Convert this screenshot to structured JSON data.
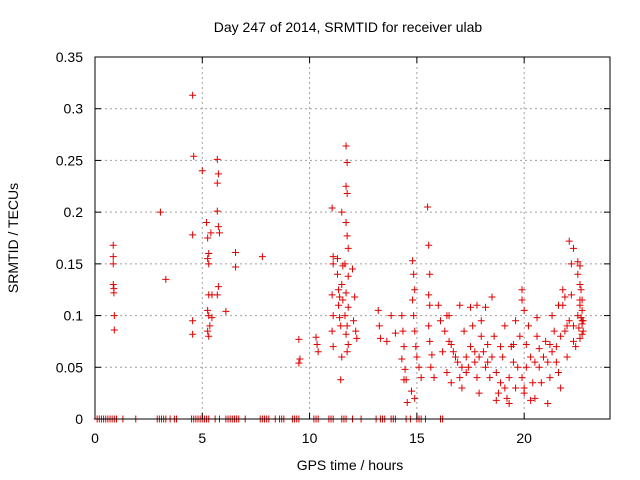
{
  "chart_data": {
    "type": "scatter",
    "title": "Day 247 of 2014, SRMTID for receiver ulab",
    "xlabel": "GPS time / hours",
    "ylabel": "SRMTID / TECUs",
    "xlim": [
      0,
      24
    ],
    "ylim": [
      0,
      0.35
    ],
    "xticks": [
      0,
      5,
      10,
      15,
      20
    ],
    "yticks": [
      0,
      0.05,
      0.1,
      0.15,
      0.2,
      0.25,
      0.3,
      0.35
    ],
    "xtick_labels": [
      "0",
      "5",
      "10",
      "15",
      "20"
    ],
    "ytick_labels": [
      "0",
      "0.05",
      "0.1",
      "0.15",
      "0.2",
      "0.25",
      "0.3",
      "0.35"
    ],
    "grid": true,
    "marker": "+",
    "color": "#e00000",
    "series": [
      {
        "name": "SRMTID",
        "points": [
          [
            0.85,
            0.168
          ],
          [
            0.85,
            0.157
          ],
          [
            0.85,
            0.15
          ],
          [
            0.85,
            0.13
          ],
          [
            0.88,
            0.126
          ],
          [
            0.88,
            0.122
          ],
          [
            0.9,
            0.1
          ],
          [
            0.9,
            0.086
          ],
          [
            3.05,
            0.2
          ],
          [
            3.3,
            0.135
          ],
          [
            4.55,
            0.313
          ],
          [
            4.6,
            0.254
          ],
          [
            4.55,
            0.178
          ],
          [
            4.55,
            0.095
          ],
          [
            4.55,
            0.082
          ],
          [
            5.0,
            0.24
          ],
          [
            5.2,
            0.19
          ],
          [
            5.25,
            0.175
          ],
          [
            5.3,
            0.16
          ],
          [
            5.25,
            0.155
          ],
          [
            5.3,
            0.15
          ],
          [
            5.3,
            0.12
          ],
          [
            5.25,
            0.105
          ],
          [
            5.3,
            0.1
          ],
          [
            5.35,
            0.09
          ],
          [
            5.25,
            0.085
          ],
          [
            5.3,
            0.08
          ],
          [
            5.4,
            0.18
          ],
          [
            5.45,
            0.12
          ],
          [
            5.45,
            0.098
          ],
          [
            5.7,
            0.251
          ],
          [
            5.75,
            0.237
          ],
          [
            5.7,
            0.228
          ],
          [
            5.7,
            0.201
          ],
          [
            5.75,
            0.186
          ],
          [
            5.8,
            0.18
          ],
          [
            5.75,
            0.128
          ],
          [
            5.7,
            0.12
          ],
          [
            6.1,
            0.104
          ],
          [
            6.55,
            0.161
          ],
          [
            6.55,
            0.147
          ],
          [
            7.8,
            0.157
          ],
          [
            9.5,
            0.077
          ],
          [
            9.55,
            0.058
          ],
          [
            9.5,
            0.054
          ],
          [
            10.3,
            0.079
          ],
          [
            10.35,
            0.072
          ],
          [
            10.4,
            0.065
          ],
          [
            11.05,
            0.204
          ],
          [
            11.1,
            0.157
          ],
          [
            11.1,
            0.15
          ],
          [
            11.05,
            0.12
          ],
          [
            11.1,
            0.1
          ],
          [
            11.05,
            0.085
          ],
          [
            11.1,
            0.07
          ],
          [
            11.3,
            0.155
          ],
          [
            11.3,
            0.14
          ],
          [
            11.35,
            0.125
          ],
          [
            11.4,
            0.118
          ],
          [
            11.35,
            0.11
          ],
          [
            11.4,
            0.098
          ],
          [
            11.45,
            0.09
          ],
          [
            11.5,
            0.2
          ],
          [
            11.55,
            0.148
          ],
          [
            11.5,
            0.13
          ],
          [
            11.55,
            0.115
          ],
          [
            11.5,
            0.06
          ],
          [
            11.45,
            0.038
          ],
          [
            11.7,
            0.264
          ],
          [
            11.75,
            0.248
          ],
          [
            11.7,
            0.225
          ],
          [
            11.75,
            0.218
          ],
          [
            11.7,
            0.19
          ],
          [
            11.75,
            0.177
          ],
          [
            11.8,
            0.165
          ],
          [
            11.65,
            0.15
          ],
          [
            11.8,
            0.138
          ],
          [
            11.7,
            0.122
          ],
          [
            11.8,
            0.108
          ],
          [
            11.65,
            0.1
          ],
          [
            11.75,
            0.09
          ],
          [
            11.7,
            0.082
          ],
          [
            11.8,
            0.072
          ],
          [
            11.75,
            0.065
          ],
          [
            12.0,
            0.145
          ],
          [
            12.1,
            0.118
          ],
          [
            12.05,
            0.095
          ],
          [
            12.15,
            0.085
          ],
          [
            12.2,
            0.078
          ],
          [
            13.2,
            0.105
          ],
          [
            13.25,
            0.09
          ],
          [
            13.3,
            0.078
          ],
          [
            13.6,
            0.075
          ],
          [
            13.8,
            0.1
          ],
          [
            14.0,
            0.083
          ],
          [
            14.3,
            0.1
          ],
          [
            14.35,
            0.085
          ],
          [
            14.4,
            0.07
          ],
          [
            14.3,
            0.058
          ],
          [
            14.45,
            0.048
          ],
          [
            14.4,
            0.038
          ],
          [
            14.5,
            0.038
          ],
          [
            14.55,
            0.016
          ],
          [
            14.9,
            0.02
          ],
          [
            14.75,
            0.027
          ],
          [
            14.8,
            0.153
          ],
          [
            14.85,
            0.14
          ],
          [
            14.9,
            0.125
          ],
          [
            14.8,
            0.115
          ],
          [
            14.85,
            0.1
          ],
          [
            14.9,
            0.085
          ],
          [
            14.95,
            0.07
          ],
          [
            15.0,
            0.06
          ],
          [
            15.1,
            0.05
          ],
          [
            15.2,
            0.04
          ],
          [
            15.5,
            0.205
          ],
          [
            15.55,
            0.168
          ],
          [
            15.6,
            0.14
          ],
          [
            15.55,
            0.12
          ],
          [
            15.6,
            0.11
          ],
          [
            15.55,
            0.09
          ],
          [
            15.6,
            0.075
          ],
          [
            15.7,
            0.062
          ],
          [
            15.65,
            0.05
          ],
          [
            15.8,
            0.04
          ],
          [
            16.1,
            0.095
          ],
          [
            16.3,
            0.085
          ],
          [
            16.5,
            0.075
          ],
          [
            16.7,
            0.065
          ],
          [
            16.9,
            0.055
          ],
          [
            17.1,
            0.05
          ],
          [
            17.3,
            0.06
          ],
          [
            17.5,
            0.07
          ],
          [
            17.7,
            0.065
          ],
          [
            17.9,
            0.06
          ],
          [
            18.1,
            0.065
          ],
          [
            18.3,
            0.072
          ],
          [
            18.5,
            0.06
          ],
          [
            18.7,
            0.045
          ],
          [
            18.9,
            0.035
          ],
          [
            19.1,
            0.03
          ],
          [
            19.3,
            0.04
          ],
          [
            19.5,
            0.055
          ],
          [
            19.7,
            0.05
          ],
          [
            19.9,
            0.04
          ],
          [
            20.1,
            0.05
          ],
          [
            20.3,
            0.06
          ],
          [
            20.5,
            0.055
          ],
          [
            20.7,
            0.05
          ],
          [
            20.9,
            0.06
          ],
          [
            21.1,
            0.055
          ],
          [
            21.3,
            0.065
          ],
          [
            21.5,
            0.07
          ],
          [
            21.7,
            0.08
          ],
          [
            21.9,
            0.085
          ],
          [
            22.1,
            0.095
          ],
          [
            22.3,
            0.09
          ],
          [
            22.5,
            0.1
          ],
          [
            22.7,
            0.095
          ],
          [
            16.2,
            0.065
          ],
          [
            16.4,
            0.045
          ],
          [
            16.6,
            0.035
          ],
          [
            16.8,
            0.06
          ],
          [
            17.0,
            0.04
          ],
          [
            17.2,
            0.085
          ],
          [
            17.4,
            0.05
          ],
          [
            17.6,
            0.09
          ],
          [
            17.8,
            0.04
          ],
          [
            18.0,
            0.08
          ],
          [
            18.2,
            0.05
          ],
          [
            18.4,
            0.04
          ],
          [
            18.6,
            0.08
          ],
          [
            18.8,
            0.025
          ],
          [
            19.0,
            0.06
          ],
          [
            19.2,
            0.02
          ],
          [
            19.4,
            0.07
          ],
          [
            19.6,
            0.03
          ],
          [
            19.8,
            0.08
          ],
          [
            20.0,
            0.025
          ],
          [
            20.2,
            0.09
          ],
          [
            20.4,
            0.035
          ],
          [
            20.6,
            0.08
          ],
          [
            20.8,
            0.035
          ],
          [
            21.0,
            0.075
          ],
          [
            21.2,
            0.04
          ],
          [
            21.4,
            0.085
          ],
          [
            21.6,
            0.045
          ],
          [
            21.8,
            0.11
          ],
          [
            22.0,
            0.06
          ],
          [
            22.2,
            0.12
          ],
          [
            22.4,
            0.07
          ],
          [
            22.6,
            0.115
          ],
          [
            16.5,
            0.1
          ],
          [
            17.0,
            0.11
          ],
          [
            17.5,
            0.108
          ],
          [
            17.8,
            0.11
          ],
          [
            18.2,
            0.108
          ],
          [
            18.5,
            0.118
          ],
          [
            18.0,
            0.095
          ],
          [
            19.1,
            0.09
          ],
          [
            19.6,
            0.095
          ],
          [
            19.9,
            0.125
          ],
          [
            19.9,
            0.115
          ],
          [
            20.0,
            0.105
          ],
          [
            20.6,
            0.098
          ],
          [
            21.3,
            0.1
          ],
          [
            21.6,
            0.11
          ],
          [
            21.8,
            0.125
          ],
          [
            21.9,
            0.118
          ],
          [
            17.1,
            0.03
          ],
          [
            17.9,
            0.025
          ],
          [
            18.7,
            0.018
          ],
          [
            19.3,
            0.015
          ],
          [
            20.5,
            0.02
          ],
          [
            21.1,
            0.015
          ],
          [
            21.7,
            0.03
          ],
          [
            20.0,
            0.03
          ],
          [
            20.3,
            0.018
          ],
          [
            22.1,
            0.172
          ],
          [
            22.3,
            0.165
          ],
          [
            22.2,
            0.15
          ],
          [
            22.5,
            0.152
          ],
          [
            22.6,
            0.148
          ],
          [
            22.5,
            0.14
          ],
          [
            22.6,
            0.13
          ],
          [
            22.65,
            0.125
          ],
          [
            22.7,
            0.115
          ],
          [
            22.6,
            0.11
          ],
          [
            22.7,
            0.105
          ],
          [
            22.65,
            0.098
          ],
          [
            22.7,
            0.092
          ],
          [
            22.55,
            0.088
          ],
          [
            22.7,
            0.082
          ],
          [
            22.6,
            0.078
          ],
          [
            22.75,
            0.085
          ],
          [
            22.75,
            0.095
          ],
          [
            16.0,
            0.11
          ],
          [
            16.4,
            0.1
          ],
          [
            16.6,
            0.072
          ],
          [
            17.3,
            0.045
          ],
          [
            17.7,
            0.055
          ],
          [
            18.3,
            0.055
          ],
          [
            18.9,
            0.07
          ],
          [
            19.5,
            0.072
          ],
          [
            20.1,
            0.072
          ],
          [
            20.7,
            0.068
          ],
          [
            21.2,
            0.072
          ],
          [
            21.5,
            0.055
          ],
          [
            22.0,
            0.09
          ],
          [
            22.3,
            0.075
          ]
        ],
        "zero_points_x": [
          0.1,
          0.2,
          0.3,
          0.4,
          0.5,
          0.6,
          0.7,
          0.8,
          0.9,
          1.0,
          1.3,
          1.9,
          2.9,
          3.0,
          3.1,
          3.2,
          3.3,
          3.5,
          3.7,
          3.8,
          4.5,
          4.6,
          4.7,
          4.8,
          4.9,
          5.0,
          5.1,
          5.2,
          5.3,
          5.6,
          5.8,
          6.1,
          6.2,
          6.3,
          6.4,
          6.5,
          6.6,
          6.7,
          7.0,
          7.7,
          7.8,
          7.9,
          8.0,
          8.1,
          8.4,
          8.6,
          8.7,
          8.8,
          9.2,
          9.3,
          9.4,
          9.5,
          10.2,
          10.3,
          10.4,
          10.9,
          11.0,
          11.1,
          11.5,
          11.6,
          11.7,
          12.0,
          12.4,
          13.1,
          13.3,
          13.4,
          13.5,
          13.8,
          13.9,
          14.0,
          14.5,
          14.7,
          15.0,
          15.1,
          15.2,
          15.4,
          16.1,
          16.2
        ]
      }
    ]
  }
}
